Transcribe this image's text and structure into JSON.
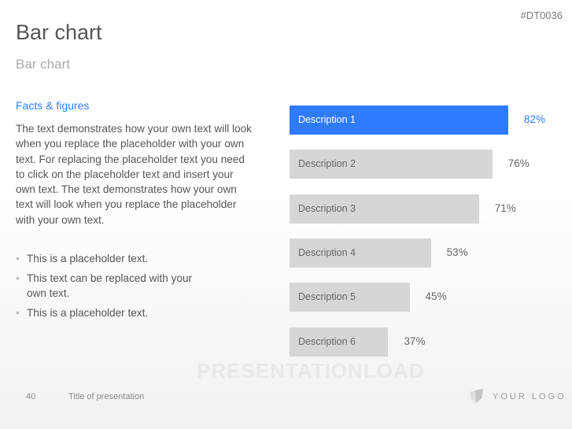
{
  "slide": {
    "code": "#DT0036",
    "title": "Bar chart",
    "subtitle": "Bar chart",
    "facts_heading": "Facts & figures",
    "body": "The text demonstrates how your own text will look when you replace the placeholder with your own text. For replacing the placeholder text you need to click on the placeholder text and insert your own text. The text demonstrates how your own text will look when you replace the placeholder with your own text.",
    "bullets": [
      "This is a placeholder text.",
      "This text can be replaced with your own text.",
      "This is a placeholder text."
    ],
    "watermark": "PRESENTATIONLOAD",
    "footer": {
      "page_number": "40",
      "presentation_title": "Title of presentation",
      "logo_text": "YOUR LOGO"
    }
  },
  "colors": {
    "highlight": "#2f7bff",
    "bar": "#d6d6d6"
  },
  "chart_data": {
    "type": "bar",
    "orientation": "horizontal",
    "categories": [
      "Description 1",
      "Description 2",
      "Description 3",
      "Description 4",
      "Description 5",
      "Description 6"
    ],
    "values": [
      82,
      76,
      71,
      53,
      45,
      37
    ],
    "labels": [
      "82%",
      "76%",
      "71%",
      "53%",
      "45%",
      "37%"
    ],
    "highlighted": "Description 1",
    "unit": "%",
    "xlim": [
      0,
      100
    ],
    "grid": false
  }
}
